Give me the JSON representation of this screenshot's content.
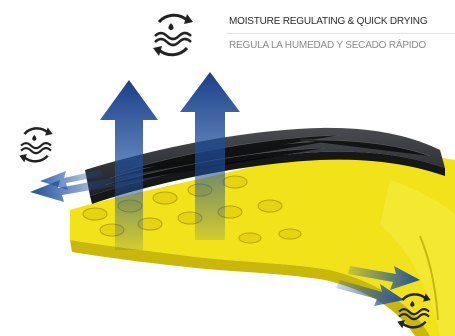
{
  "header": {
    "title_en": "MOISTURE REGULATING & QUICK DRYING",
    "title_es": "REGULA LA HUMEDAD Y SECADO RÁPIDO"
  },
  "icons": {
    "header_icon": "moisture-wave-cycle-icon",
    "left_icon": "moisture-wave-cycle-icon",
    "bottom_right_icon": "moisture-wave-cycle-icon"
  },
  "colors": {
    "foam_yellow": "#f2e21a",
    "foam_shadow": "#c9b80a",
    "fabric_dark": "#2e2f33",
    "arrow_blue": "#1f4f9e",
    "icon_dark": "#222222"
  }
}
